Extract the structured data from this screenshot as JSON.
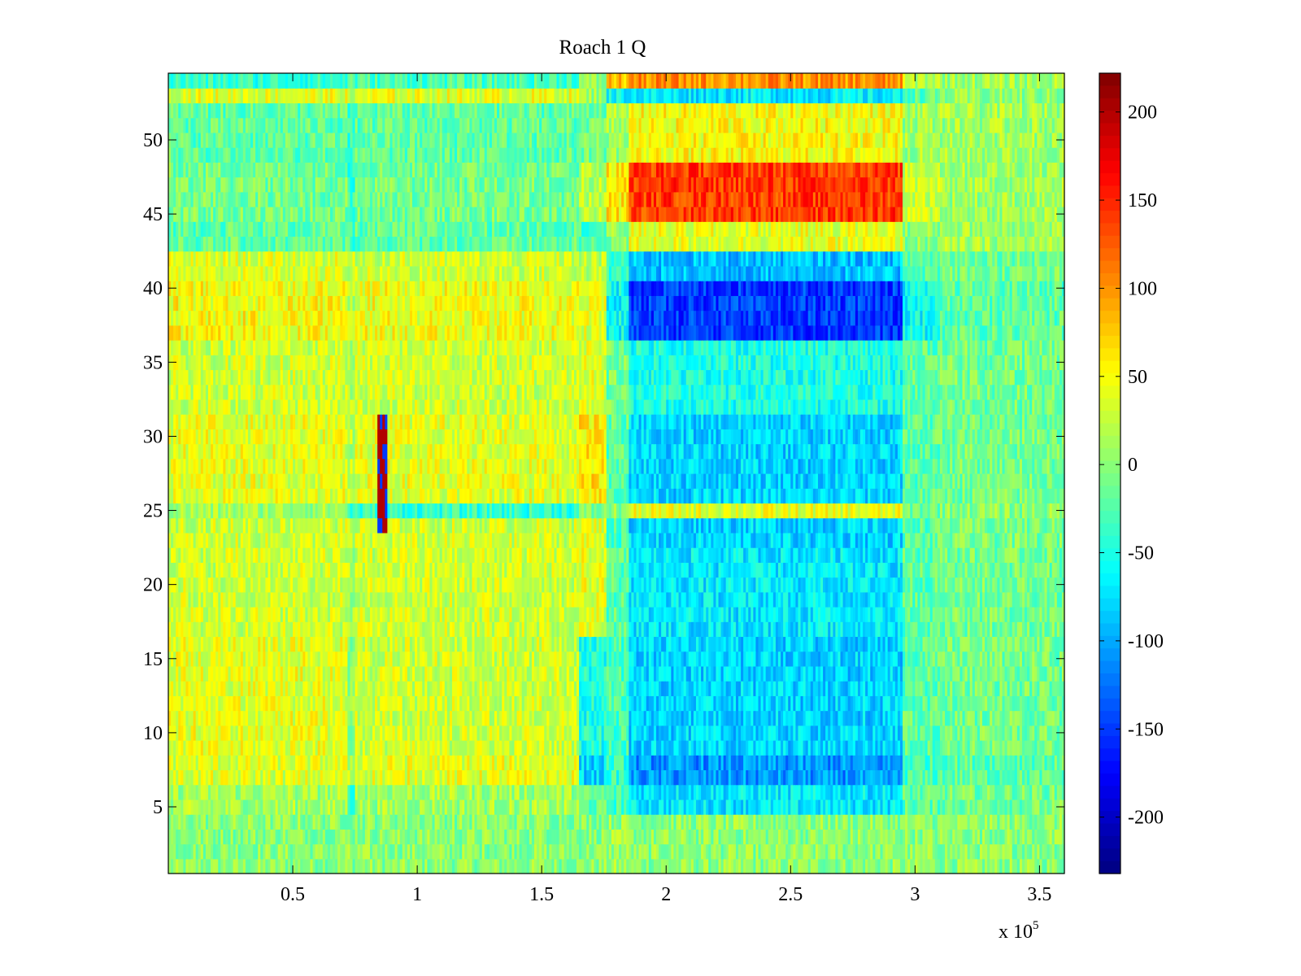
{
  "chart_data": {
    "type": "heatmap",
    "title": "Roach 1 Q",
    "xlabel": "",
    "ylabel": "",
    "xlim": [
      0,
      360000
    ],
    "ylim": [
      0.5,
      54.5
    ],
    "rows": 54,
    "colormap": "jet",
    "x_ticks": [
      {
        "value": 50000,
        "label": "0.5"
      },
      {
        "value": 100000,
        "label": "1"
      },
      {
        "value": 150000,
        "label": "1.5"
      },
      {
        "value": 200000,
        "label": "2"
      },
      {
        "value": 250000,
        "label": "2.5"
      },
      {
        "value": 300000,
        "label": "3"
      },
      {
        "value": 350000,
        "label": "3.5"
      }
    ],
    "x_multiplier": {
      "base": "x 10",
      "exponent": "5"
    },
    "y_ticks": [
      {
        "value": 5,
        "label": "5"
      },
      {
        "value": 10,
        "label": "10"
      },
      {
        "value": 15,
        "label": "15"
      },
      {
        "value": 20,
        "label": "20"
      },
      {
        "value": 25,
        "label": "25"
      },
      {
        "value": 30,
        "label": "30"
      },
      {
        "value": 35,
        "label": "35"
      },
      {
        "value": 40,
        "label": "40"
      },
      {
        "value": 45,
        "label": "45"
      },
      {
        "value": 50,
        "label": "50"
      }
    ],
    "colorbar": {
      "clim": [
        -232,
        222
      ],
      "ticks": [
        {
          "value": 200,
          "label": "200"
        },
        {
          "value": 150,
          "label": "150"
        },
        {
          "value": 100,
          "label": "100"
        },
        {
          "value": 50,
          "label": "50"
        },
        {
          "value": 0,
          "label": "0"
        },
        {
          "value": -50,
          "label": "-50"
        },
        {
          "value": -100,
          "label": "-100"
        },
        {
          "value": -150,
          "label": "-150"
        },
        {
          "value": -200,
          "label": "-200"
        }
      ]
    },
    "x_breakpoints": [
      0,
      72000,
      75000,
      165000,
      176000,
      185000,
      295000,
      310000,
      360000
    ],
    "segment_means": [
      {
        "rows": [
          1,
          4
        ],
        "values": [
          0,
          0,
          0,
          0,
          5,
          0,
          0,
          0
        ]
      },
      {
        "rows": [
          5,
          6
        ],
        "values": [
          10,
          -30,
          10,
          -20,
          -30,
          -70,
          -20,
          -10
        ]
      },
      {
        "rows": [
          7,
          8
        ],
        "values": [
          35,
          20,
          40,
          -80,
          -40,
          -110,
          -30,
          -20
        ]
      },
      {
        "rows": [
          9,
          16
        ],
        "values": [
          40,
          0,
          30,
          -50,
          -30,
          -80,
          -20,
          -10
        ]
      },
      {
        "rows": [
          17,
          22
        ],
        "values": [
          30,
          15,
          30,
          40,
          -20,
          -70,
          -20,
          -10
        ]
      },
      {
        "rows": [
          23,
          24
        ],
        "values": [
          30,
          20,
          30,
          40,
          -30,
          -80,
          -20,
          -10
        ]
      },
      {
        "rows": [
          25,
          25
        ],
        "values": [
          10,
          -40,
          -40,
          -10,
          0,
          40,
          -10,
          0
        ]
      },
      {
        "rows": [
          26,
          31
        ],
        "values": [
          40,
          20,
          40,
          60,
          -20,
          -80,
          -20,
          -10
        ]
      },
      {
        "rows": [
          32,
          36
        ],
        "values": [
          30,
          20,
          30,
          40,
          -10,
          -50,
          -20,
          -10
        ]
      },
      {
        "rows": [
          37,
          40
        ],
        "values": [
          50,
          20,
          45,
          40,
          -60,
          -150,
          -60,
          -20
        ]
      },
      {
        "rows": [
          41,
          42
        ],
        "values": [
          35,
          25,
          30,
          20,
          -40,
          -90,
          -20,
          -10
        ]
      },
      {
        "rows": [
          43,
          44
        ],
        "values": [
          -20,
          -30,
          -20,
          -30,
          0,
          40,
          0,
          10
        ]
      },
      {
        "rows": [
          45,
          48
        ],
        "values": [
          -10,
          -40,
          -10,
          20,
          60,
          140,
          30,
          10
        ]
      },
      {
        "rows": [
          49,
          52
        ],
        "values": [
          -20,
          -40,
          -20,
          -10,
          10,
          50,
          10,
          10
        ]
      },
      {
        "rows": [
          53,
          53
        ],
        "values": [
          40,
          0,
          40,
          10,
          -60,
          -70,
          -20,
          0
        ]
      },
      {
        "rows": [
          54,
          54
        ],
        "values": [
          -40,
          -20,
          -30,
          0,
          80,
          100,
          20,
          10
        ]
      }
    ],
    "annotations": [
      {
        "text": "thin vertical streak near x=0.86e5, rows 24-31, values up to ~200 and down to ~-150"
      }
    ]
  }
}
